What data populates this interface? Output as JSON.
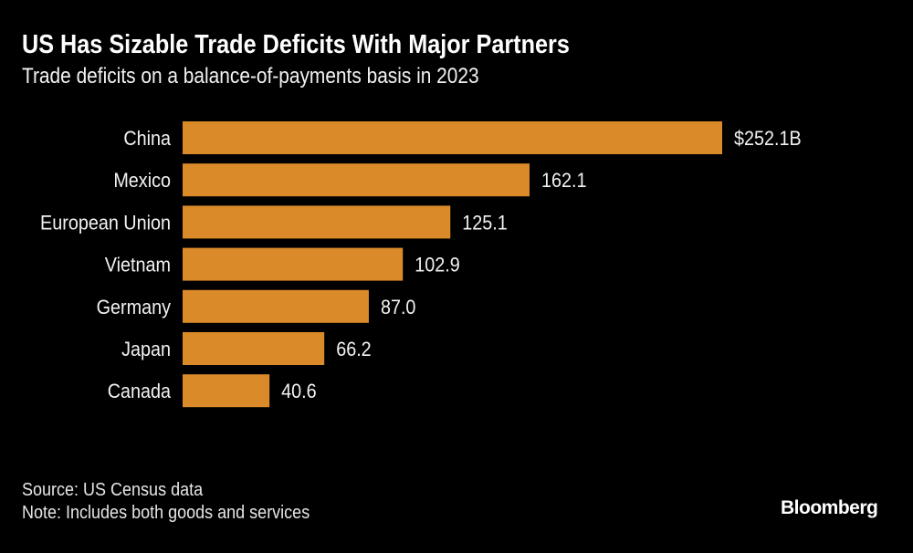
{
  "title": "US Has Sizable Trade Deficits With Major Partners",
  "subtitle": "Trade deficits on a balance-of-payments basis in 2023",
  "source": "Source: US Census data",
  "note": "Note: Includes both goods and services",
  "logo": "Bloomberg",
  "chart_data": {
    "type": "bar",
    "orientation": "horizontal",
    "title": "US Has Sizable Trade Deficits With Major Partners",
    "subtitle": "Trade deficits on a balance-of-payments basis in 2023",
    "categories": [
      "China",
      "Mexico",
      "European Union",
      "Vietnam",
      "Germany",
      "Japan",
      "Canada"
    ],
    "values": [
      252.1,
      162.1,
      125.1,
      102.9,
      87.0,
      66.2,
      40.6
    ],
    "data_labels": [
      "$252.1B",
      "162.1",
      "125.1",
      "102.9",
      "87.0",
      "66.2",
      "40.6"
    ],
    "unit": "billion USD",
    "bar_color": "#DB8A2A",
    "background": "#000000",
    "grid": false,
    "axes_visible": false
  }
}
